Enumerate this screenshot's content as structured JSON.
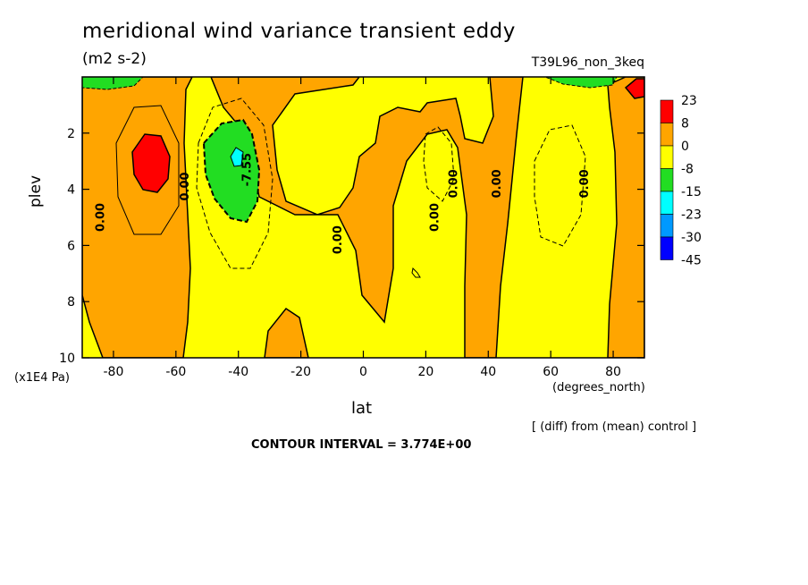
{
  "chart_data": {
    "type": "contour",
    "title": "meridional wind variance transient eddy",
    "units": "(m2 s-2)",
    "run_label": "T39L96_non_3keq",
    "xlabel": "lat",
    "x_units": "(degrees_north)",
    "ylabel": "plev",
    "y_units": "(x1E4 Pa)",
    "xlim": [
      -90,
      90
    ],
    "ylim": [
      10,
      0
    ],
    "x_ticks": [
      -80,
      -60,
      -40,
      -20,
      0,
      20,
      40,
      60,
      80
    ],
    "y_ticks": [
      2,
      4,
      6,
      8,
      10
    ],
    "legend": {
      "levels": [
        "23",
        "8",
        "0",
        "-8",
        "-15",
        "-23",
        "-30",
        "-45"
      ],
      "colors": [
        "#ff0000",
        "#ffa500",
        "#ffff00",
        "#22dd22",
        "#00ffff",
        "#0099ff",
        "#0000ff"
      ]
    },
    "contour_labels": [
      {
        "text": "0.00",
        "lat": -83,
        "plev": 5.0
      },
      {
        "text": "0.00",
        "lat": -56,
        "plev": 3.9
      },
      {
        "text": "-7.55",
        "lat": -36,
        "plev": 3.3
      },
      {
        "text": "0.00",
        "lat": -7,
        "plev": 5.8
      },
      {
        "text": "0.00",
        "lat": 24,
        "plev": 5.0
      },
      {
        "text": "0.00",
        "lat": 30,
        "plev": 3.8
      },
      {
        "text": "0.00",
        "lat": 44,
        "plev": 3.8
      },
      {
        "text": "0.00",
        "lat": 72,
        "plev": 3.8
      }
    ],
    "contour_interval": "CONTOUR INTERVAL = 3.774E+00",
    "note": "[ (diff) from (mean) control ]"
  }
}
